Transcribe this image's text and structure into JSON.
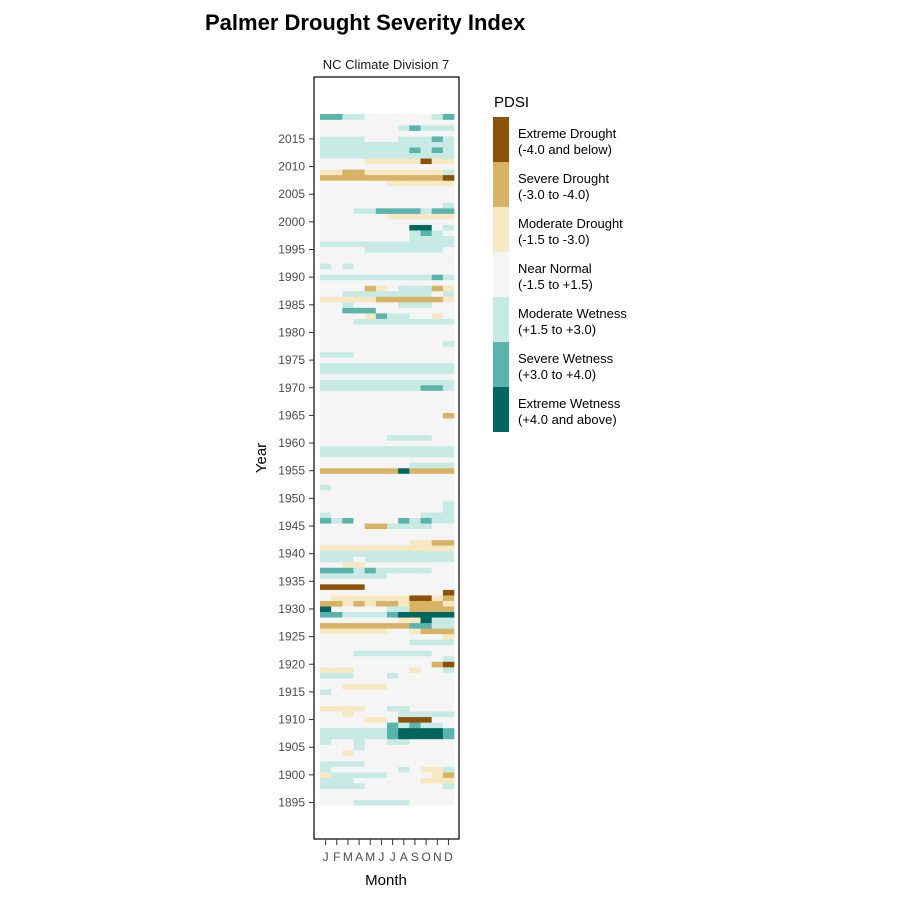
{
  "chart_data": {
    "type": "heatmap",
    "title": "Palmer Drought Severity Index",
    "subtitle": "NC Climate Division 7",
    "xlabel": "Month",
    "ylabel": "Year",
    "x_tick_labels": [
      "J",
      "F",
      "M",
      "A",
      "M",
      "J",
      "J",
      "A",
      "S",
      "O",
      "N",
      "D"
    ],
    "y_ticks": [
      1895,
      1900,
      1905,
      1910,
      1915,
      1920,
      1925,
      1930,
      1935,
      1940,
      1945,
      1950,
      1955,
      1960,
      1965,
      1970,
      1975,
      1980,
      1985,
      1990,
      1995,
      2000,
      2005,
      2010,
      2015
    ],
    "y_range": [
      1892,
      2021
    ],
    "year_start": 1895,
    "year_end": 2019,
    "grid": false,
    "legend": {
      "title": "PDSI",
      "placement": "right",
      "items": [
        {
          "key": "ED",
          "line1": "Extreme Drought",
          "line2": "(-4.0 and below)",
          "color": "#8c510a"
        },
        {
          "key": "SD",
          "line1": "Severe Drought",
          "line2": "(-3.0 to -4.0)",
          "color": "#d8b365"
        },
        {
          "key": "MD",
          "line1": "Moderate Drought",
          "line2": "(-1.5 to -3.0)",
          "color": "#f6e8c3"
        },
        {
          "key": "NN",
          "line1": "Near Normal",
          "line2": "(-1.5 to +1.5)",
          "color": "#f5f5f5"
        },
        {
          "key": "MW",
          "line1": "Moderate Wetness",
          "line2": "(+1.5 to +3.0)",
          "color": "#c7eae5"
        },
        {
          "key": "SW",
          "line1": "Severe Wetness",
          "line2": "(+3.0 to +4.0)",
          "color": "#5ab4ac"
        },
        {
          "key": "EW",
          "line1": "Extreme Wetness",
          "line2": "(+4.0 and above)",
          "color": "#01665e"
        }
      ]
    },
    "category_codes": {
      "0": "ED",
      "1": "SD",
      "2": "MD",
      "3": "NN",
      "4": "MW",
      "5": "SW",
      "6": "EW"
    },
    "rows": {
      "1895": "333444443333",
      "1896": "333333333333",
      "1897": "333333333333",
      "1898": "444433333334",
      "1899": "444333333222",
      "1900": "244444333321",
      "1901": "433333343224",
      "1902": "444433333333",
      "1903": "333333333333",
      "1904": "332333333333",
      "1905": "333433333333",
      "1906": "433433443333",
      "1907": "444444566665",
      "1908": "444444566665",
      "1909": "333333545443",
      "1910": "333322300033",
      "1911": "332333344444",
      "1912": "222233443333",
      "1913": "333333333333",
      "1914": "333333333333",
      "1915": "433333333333",
      "1916": "332222333333",
      "1917": "333333333333",
      "1918": "444333433333",
      "1919": "222333332334",
      "1920": "333333333310",
      "1921": "333333333334",
      "1922": "333444444433",
      "1923": "333333333333",
      "1924": "333333334444",
      "1925": "333333333332",
      "1926": "222222332111",
      "1927": "111111115544",
      "1928": "333333322644",
      "1929": "554444566666",
      "1930": "633333441111",
      "1931": "112121121112",
      "1932": "322222220021",
      "1933": "333333333330",
      "1934": "000033333333",
      "1935": "333333333333",
      "1936": "444444333333",
      "1937": "555454444433",
      "1938": "332233333333",
      "1939": "444344444444",
      "1940": "444444444444",
      "1941": "222222222222",
      "1942": "333333332211",
      "1943": "333333333333",
      "1944": "333333333333",
      "1945": "333311444433",
      "1946": "545333354544",
      "1947": "433333333444",
      "1948": "333333333334",
      "1949": "333333333334",
      "1950": "333333333333",
      "1951": "333333333333",
      "1952": "433333333333",
      "1953": "333333333333",
      "1954": "333333333333",
      "1955": "111111161111",
      "1956": "333333334444",
      "1957": "333333333333",
      "1958": "444444444444",
      "1959": "444444444444",
      "1960": "333333333333",
      "1961": "333333444433",
      "1962": "333333333333",
      "1963": "333333333333",
      "1964": "333333333333",
      "1965": "333333333331",
      "1966": "333333333333",
      "1967": "333333333333",
      "1968": "333333333333",
      "1969": "333333333333",
      "1970": "444444444554",
      "1971": "444444444444",
      "1972": "333333333333",
      "1973": "444444444444",
      "1974": "444444444444",
      "1975": "333333333333",
      "1976": "444333333333",
      "1977": "333333333333",
      "1978": "333333333334",
      "1979": "333333333333",
      "1980": "333333333333",
      "1981": "333333333333",
      "1982": "333444444444",
      "1983": "333325443323",
      "1984": "335553333333",
      "1985": "334333344433",
      "1986": "222221111112",
      "1987": "334444444434",
      "1988": "333312344412",
      "1989": "333333333333",
      "1990": "444444444454",
      "1991": "333333333333",
      "1992": "434333333333",
      "1993": "333333333333",
      "1994": "333333333333",
      "1995": "333344444443",
      "1996": "444444444444",
      "1997": "333333334444",
      "1998": "333333334543",
      "1999": "333333336634",
      "2000": "333333333333",
      "2001": "333333222222",
      "2002": "333445555455",
      "2003": "333333333334",
      "2004": "333333333333",
      "2005": "333333333333",
      "2006": "333333333333",
      "2007": "333333222222",
      "2008": "111111111110",
      "2009": "221122222224",
      "2010": "333333333333",
      "2011": "333322222022",
      "2012": "444444444444",
      "2013": "444444445454",
      "2014": "444444444444",
      "2015": "444433344454",
      "2016": "333333333333",
      "2017": "333333345444",
      "2018": "333333333333",
      "2019": "554433333345"
    }
  }
}
